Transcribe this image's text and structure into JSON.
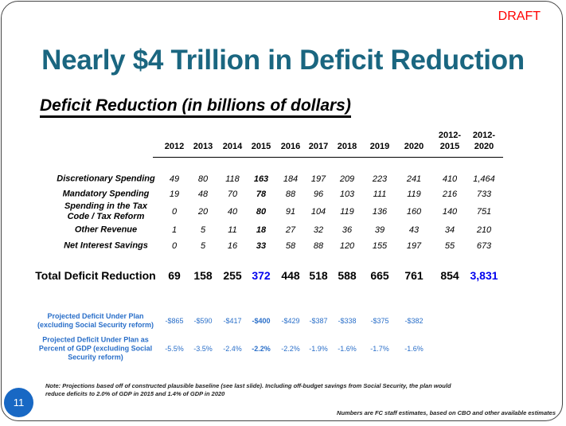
{
  "draft_label": "DRAFT",
  "title": "Nearly $4 Trillion in Deficit Reduction",
  "subtitle": "Deficit Reduction (in billions of dollars)",
  "columns": [
    "2012",
    "2013",
    "2014",
    "2015",
    "2016",
    "2017",
    "2018",
    "2019",
    "2020",
    "2012-\n2015",
    "2012-\n2020"
  ],
  "rows": [
    {
      "label": "Discretionary Spending",
      "values": [
        "49",
        "80",
        "118",
        "163",
        "184",
        "197",
        "209",
        "223",
        "241",
        "410",
        "1,464"
      ]
    },
    {
      "label": "Mandatory Spending",
      "values": [
        "19",
        "48",
        "70",
        "78",
        "88",
        "96",
        "103",
        "111",
        "119",
        "216",
        "733"
      ]
    },
    {
      "label": "Spending in the Tax\nCode / Tax Reform",
      "values": [
        "0",
        "20",
        "40",
        "80",
        "91",
        "104",
        "119",
        "136",
        "160",
        "140",
        "751"
      ]
    },
    {
      "label": "Other Revenue",
      "values": [
        "1",
        "5",
        "11",
        "18",
        "27",
        "32",
        "36",
        "39",
        "43",
        "34",
        "210"
      ]
    },
    {
      "label": "Net Interest Savings",
      "values": [
        "0",
        "5",
        "16",
        "33",
        "58",
        "88",
        "120",
        "155",
        "197",
        "55",
        "673"
      ]
    }
  ],
  "total": {
    "label": "Total Deficit Reduction",
    "values": [
      "69",
      "158",
      "255",
      "372",
      "448",
      "518",
      "588",
      "665",
      "761",
      "854",
      "3,831"
    ]
  },
  "projections": [
    {
      "label": "Projected Deficit Under Plan\n(excluding Social Security reform)",
      "values": [
        "-$865",
        "-$590",
        "-$417",
        "-$400",
        "-$429",
        "-$387",
        "-$338",
        "-$375",
        "-$382"
      ]
    },
    {
      "label": "Projected Deficit Under Plan as\nPercent of GDP (excluding Social\nSecurity reform)",
      "values": [
        "-5.5%",
        "-3.5%",
        "-2.4%",
        "-2.2%",
        "-2.2%",
        "-1.9%",
        "-1.6%",
        "-1.7%",
        "-1.6%"
      ]
    }
  ],
  "note": "Note: Projections based off of constructed plausible baseline (see last slide). Including off-budget savings from Social Security, the plan would reduce deficits to 2.0% of GDP in 2015 and 1.4% of GDP in 2020",
  "source": "Numbers are FC staff estimates, based on CBO and other available estimates",
  "page_number": "11",
  "colors": {
    "title": "#1a6680",
    "draft": "#ff0000",
    "highlight": "#0000ee",
    "projection": "#2a6fc9",
    "badge": "#1868c4"
  }
}
